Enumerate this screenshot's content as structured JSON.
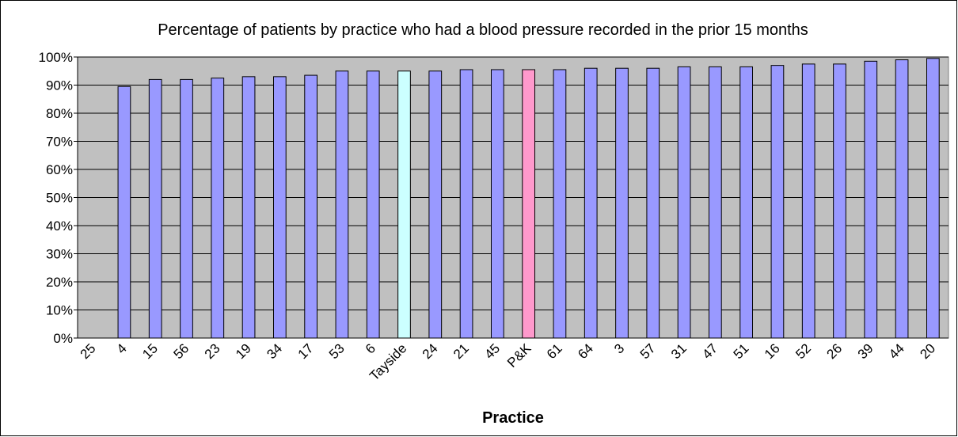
{
  "chart_data": {
    "type": "bar",
    "title": "Percentage of patients by practice who had a blood pressure recorded in the prior 15 months",
    "x_label": "Practice",
    "categories": [
      "25",
      "4",
      "15",
      "56",
      "23",
      "19",
      "34",
      "17",
      "53",
      "6",
      "Tayside",
      "24",
      "21",
      "45",
      "P&K",
      "61",
      "64",
      "3",
      "57",
      "31",
      "47",
      "51",
      "16",
      "52",
      "26",
      "39",
      "44",
      "20"
    ],
    "values": [
      null,
      89.5,
      92,
      92,
      92.5,
      93,
      93,
      93.5,
      95,
      95,
      95,
      95,
      95.5,
      95.5,
      95.5,
      95.5,
      96,
      96,
      96,
      96.5,
      96.5,
      96.5,
      97,
      97.5,
      97.5,
      98.5,
      99,
      99.5
    ],
    "colors": [
      "#9999ff",
      "#9999ff",
      "#9999ff",
      "#9999ff",
      "#9999ff",
      "#9999ff",
      "#9999ff",
      "#9999ff",
      "#9999ff",
      "#9999ff",
      "#ccffff",
      "#9999ff",
      "#9999ff",
      "#9999ff",
      "#ff99cc",
      "#9999ff",
      "#9999ff",
      "#9999ff",
      "#9999ff",
      "#9999ff",
      "#9999ff",
      "#9999ff",
      "#9999ff",
      "#9999ff",
      "#9999ff",
      "#9999ff",
      "#9999ff",
      "#9999ff"
    ],
    "ylim": [
      0,
      100
    ],
    "yticks": [
      {
        "value": 0,
        "label": "0%"
      },
      {
        "value": 10,
        "label": "10%"
      },
      {
        "value": 20,
        "label": "20%"
      },
      {
        "value": 30,
        "label": "30%"
      },
      {
        "value": 40,
        "label": "40%"
      },
      {
        "value": 50,
        "label": "50%"
      },
      {
        "value": 60,
        "label": "60%"
      },
      {
        "value": 70,
        "label": "70%"
      },
      {
        "value": 80,
        "label": "80%"
      },
      {
        "value": 90,
        "label": "90%"
      },
      {
        "value": 100,
        "label": "100%"
      }
    ],
    "grid": true
  }
}
